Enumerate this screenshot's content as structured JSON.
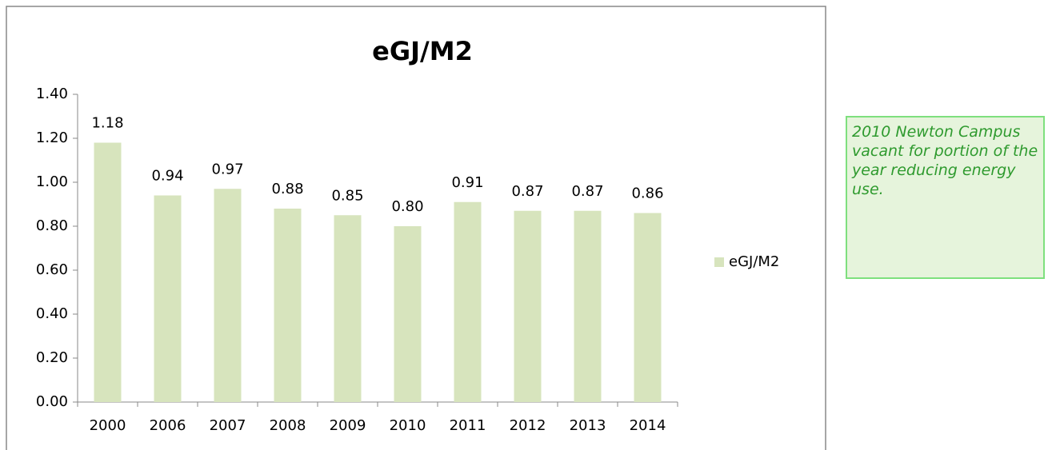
{
  "chart_data": {
    "type": "bar",
    "title": "eGJ/M2",
    "categories": [
      "2000",
      "2006",
      "2007",
      "2008",
      "2009",
      "2010",
      "2011",
      "2012",
      "2013",
      "2014"
    ],
    "series": [
      {
        "name": "eGJ/M2",
        "color": "#d7e4bd",
        "values": [
          1.18,
          0.94,
          0.97,
          0.88,
          0.85,
          0.8,
          0.91,
          0.87,
          0.87,
          0.86
        ],
        "value_labels": [
          "1.18",
          "0.94",
          "0.97",
          "0.88",
          "0.85",
          "0.80",
          "0.91",
          "0.87",
          "0.87",
          "0.86"
        ]
      }
    ],
    "ylim": [
      0,
      1.4
    ],
    "yticks": [
      {
        "value": 0,
        "label": "0.00"
      },
      {
        "value": 0.2,
        "label": "0.20"
      },
      {
        "value": 0.4,
        "label": "0.40"
      },
      {
        "value": 0.6,
        "label": "0.60"
      },
      {
        "value": 0.8,
        "label": "0.80"
      },
      {
        "value": 1.0,
        "label": "1.00"
      },
      {
        "value": 1.2,
        "label": "1.20"
      },
      {
        "value": 1.4,
        "label": "1.40"
      }
    ],
    "grid": false,
    "legend": "right",
    "annotations": [
      "2010 Newton Campus vacant for portion of the year reducing energy use."
    ]
  }
}
